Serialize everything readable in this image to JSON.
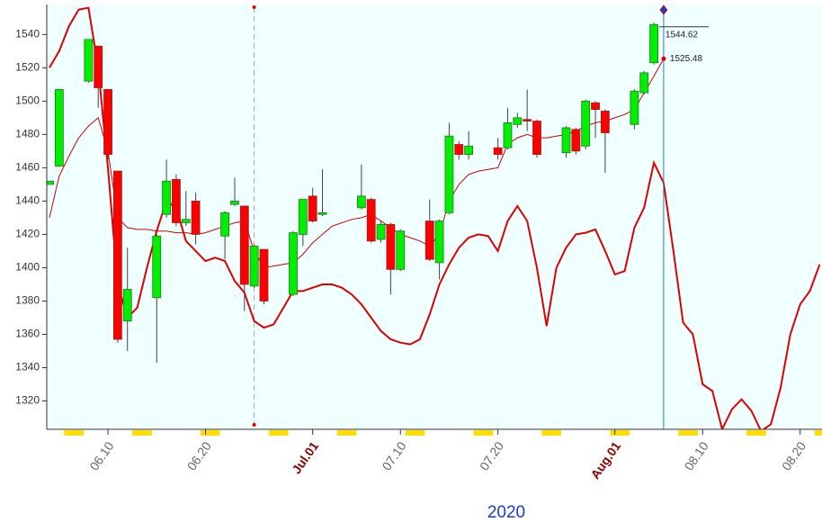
{
  "chart_data": {
    "type": "candlestick",
    "xlabel": "2020",
    "categories": [
      null,
      null,
      null,
      null,
      null,
      null,
      "06.10",
      null,
      null,
      null,
      null,
      null,
      null,
      null,
      null,
      null,
      "06.20",
      null,
      null,
      null,
      null,
      null,
      null,
      null,
      null,
      null,
      null,
      "Jul.01",
      null,
      null,
      null,
      null,
      null,
      null,
      null,
      null,
      "07.10",
      null,
      null,
      null,
      null,
      null,
      null,
      null,
      null,
      null,
      "07.20",
      null,
      null,
      null,
      null,
      null,
      null,
      null,
      null,
      null,
      null,
      null,
      "Aug.01",
      null,
      null,
      null,
      null,
      null,
      null,
      null,
      null,
      "08.10",
      null,
      null,
      null,
      null,
      null,
      null,
      null,
      null,
      null,
      "08.20",
      null,
      null
    ],
    "open": [
      1450,
      1461,
      null,
      null,
      1512,
      1533,
      1507,
      1458,
      1368,
      null,
      null,
      1382,
      1432,
      1453,
      1427,
      1440,
      null,
      null,
      1419,
      1438,
      1437,
      1389,
      1411,
      null,
      null,
      1384,
      1420,
      1443,
      1432,
      null,
      null,
      null,
      1436,
      1441,
      1417,
      1426,
      1399,
      null,
      null,
      1428,
      1403,
      1433,
      1474,
      1468,
      null,
      null,
      1472,
      1472,
      1486,
      1489,
      1488,
      null,
      null,
      1469,
      1483,
      1473,
      1499,
      1494,
      null,
      null,
      1486,
      1505,
      1523,
      null,
      null,
      null,
      null,
      null,
      null,
      null,
      null,
      null,
      null,
      null,
      null,
      null,
      null,
      null,
      null,
      null
    ],
    "high": [
      1452,
      1507,
      null,
      null,
      1537,
      1533,
      1507,
      1458,
      1412,
      null,
      null,
      1420,
      1465,
      1456,
      1446,
      1445,
      null,
      null,
      1434,
      1454,
      1437,
      1414,
      1411,
      null,
      null,
      1422,
      1441,
      1448,
      1459,
      null,
      null,
      null,
      1462,
      1442,
      1428,
      1427,
      1423,
      null,
      null,
      1441,
      1429,
      1487,
      1476,
      1482,
      null,
      null,
      1478,
      1496,
      1493,
      1507,
      1489,
      null,
      null,
      1485,
      1484,
      1501,
      1500,
      1495,
      null,
      null,
      1507,
      1518,
      1547,
      null,
      null,
      null,
      null,
      null,
      null,
      null,
      null,
      null,
      null,
      null,
      null,
      null,
      null,
      null,
      null,
      null
    ],
    "low": [
      1450,
      1461,
      null,
      null,
      1511,
      1496,
      1465,
      1355,
      1350,
      null,
      null,
      1343,
      1430,
      1425,
      1425,
      1414,
      null,
      null,
      1405,
      1437,
      1374,
      1388,
      1378,
      null,
      null,
      1383,
      1413,
      1427,
      1431,
      null,
      null,
      null,
      1435,
      1415,
      1415,
      1384,
      1398,
      null,
      null,
      1404,
      1393,
      1432,
      1465,
      1465,
      null,
      null,
      1465,
      1471,
      1484,
      1482,
      1466,
      null,
      null,
      1466,
      1468,
      1471,
      1478,
      1457,
      null,
      null,
      1483,
      1504,
      1522,
      null,
      null,
      null,
      null,
      null,
      null,
      null,
      null,
      null,
      null,
      null,
      null,
      null,
      null,
      null,
      null,
      null
    ],
    "close": [
      1452,
      1507,
      null,
      null,
      1537,
      1508,
      1468,
      1357,
      1387,
      null,
      null,
      1419,
      1452,
      1427,
      1429,
      1420,
      null,
      null,
      1433,
      1440,
      1390,
      1413,
      1380,
      null,
      null,
      1421,
      1441,
      1428,
      1433,
      null,
      null,
      null,
      1443,
      1416,
      1426,
      1399,
      1422,
      null,
      null,
      1405,
      1428,
      1479,
      1468,
      1473,
      null,
      null,
      1468,
      1487,
      1490,
      1488,
      1468,
      null,
      null,
      1484,
      1470,
      1500,
      1495,
      1481,
      null,
      null,
      1506,
      1517,
      1546,
      null,
      null,
      null,
      null,
      null,
      null,
      null,
      null,
      null,
      null,
      null,
      null,
      null,
      null,
      null,
      null,
      null
    ],
    "up_color": "#00ee00",
    "down_color": "#ff0000",
    "lines": [
      {
        "color": "#cc0000",
        "width": 1,
        "values": [
          1430,
          1455,
          1467,
          1478,
          1485,
          1490,
          1470,
          1430,
          1424,
          1423,
          1423,
          1422,
          1422,
          1421,
          1421,
          1420,
          1421,
          1423,
          1425,
          1427,
          1428,
          1410,
          1400,
          1401,
          1402,
          1403,
          1408,
          1415,
          1420,
          1425,
          1427,
          1429,
          1430,
          1432,
          1428,
          1424,
          1420,
          1418,
          1416,
          1413,
          1420,
          1440,
          1450,
          1456,
          1458,
          1459,
          1460,
          1474,
          1478,
          1480,
          1478,
          1478,
          1479,
          1480,
          1482,
          1485,
          1487,
          1488,
          1490,
          1492,
          1495,
          1505,
          1515,
          1525.48,
          null,
          null,
          null,
          null,
          null,
          null,
          null,
          null,
          null,
          null,
          null,
          null,
          null,
          null,
          null,
          null
        ]
      },
      {
        "color": "#dd0000",
        "width": 2,
        "values": [
          1520,
          1530,
          1545,
          1555,
          1556,
          1520,
          1460,
          1390,
          1370,
          1376,
          1400,
          1422,
          1440,
          1436,
          1416,
          1410,
          1404,
          1406,
          1404,
          1392,
          1385,
          1368,
          1364,
          1366,
          1376,
          1386,
          1386,
          1388,
          1390,
          1390,
          1388,
          1384,
          1378,
          1370,
          1362,
          1357,
          1355,
          1354,
          1357,
          1372,
          1390,
          1402,
          1412,
          1418,
          1420,
          1419,
          1410,
          1428,
          1437,
          1428,
          1400,
          1365,
          1400,
          1412,
          1420,
          1421,
          1423,
          1410,
          1396,
          1398,
          1424,
          1436,
          1463,
          1451,
          1410,
          1367,
          1360,
          1330,
          1326,
          1303,
          1315,
          1321,
          1314,
          1302,
          1306,
          1328,
          1360,
          1378,
          1386,
          1402
        ]
      }
    ],
    "annotations": [
      {
        "value": 1544.62,
        "label": "1544.62"
      },
      {
        "value": 1525.48,
        "label": "1525.48"
      }
    ],
    "ylim": [
      1303,
      1558
    ],
    "yticks": [
      1320,
      1340,
      1360,
      1380,
      1400,
      1420,
      1440,
      1460,
      1480,
      1500,
      1520,
      1540
    ],
    "background": "#f0ffff"
  }
}
